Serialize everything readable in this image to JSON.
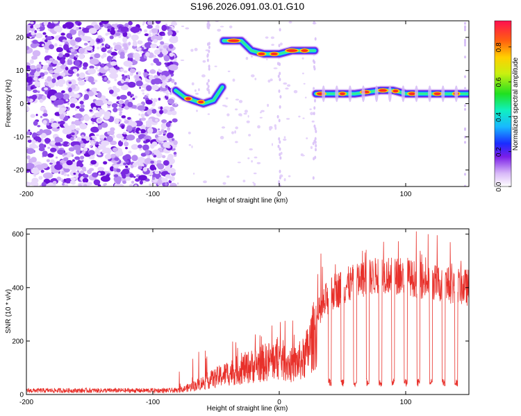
{
  "title": "S196.2026.091.03.01.G10",
  "chart_data": [
    {
      "type": "heatmap",
      "name": "spectrogram",
      "xlabel": "Height of straight line (km)",
      "ylabel": "Frequency (Hz)",
      "xlim": [
        -200,
        150
      ],
      "ylim": [
        -25,
        25
      ],
      "xticks": [
        -200,
        -100,
        0,
        100
      ],
      "yticks": [
        -20,
        -10,
        0,
        10,
        20
      ],
      "colorbar": {
        "label": "Normalized spectral amplitude",
        "range": [
          0,
          0.95
        ],
        "ticks": [
          0.0,
          0.2,
          0.4,
          0.6,
          0.8
        ],
        "tick_labels": [
          "0.0",
          "0.2",
          "0.4",
          "0.6",
          "0.8"
        ]
      },
      "ridge": [
        {
          "x": -82,
          "f": 4
        },
        {
          "x": -75,
          "f": 2
        },
        {
          "x": -68,
          "f": 1
        },
        {
          "x": -60,
          "f": 0
        },
        {
          "x": -52,
          "f": 1
        },
        {
          "x": -45,
          "f": 5
        },
        {
          "x": -44,
          "f": 19
        },
        {
          "x": -30,
          "f": 19
        },
        {
          "x": -22,
          "f": 16
        },
        {
          "x": -12,
          "f": 15
        },
        {
          "x": 0,
          "f": 15
        },
        {
          "x": 10,
          "f": 16
        },
        {
          "x": 20,
          "f": 16
        },
        {
          "x": 28,
          "f": 16
        },
        {
          "x": 29,
          "f": 3
        },
        {
          "x": 60,
          "f": 3
        },
        {
          "x": 80,
          "f": 4
        },
        {
          "x": 90,
          "f": 4
        },
        {
          "x": 100,
          "f": 3
        },
        {
          "x": 150,
          "f": 3
        }
      ]
    },
    {
      "type": "line",
      "name": "snr",
      "xlabel": "Height of straight line (km)",
      "ylabel": "SNR (10 * v/v)",
      "xlim": [
        -200,
        150
      ],
      "ylim": [
        0,
        620
      ],
      "xticks": [
        -200,
        -100,
        0,
        100
      ],
      "yticks": [
        0,
        200,
        400,
        600
      ],
      "series": [
        {
          "name": "SNR",
          "color": "#e8302a",
          "envelope": [
            {
              "x": -200,
              "y": 15
            },
            {
              "x": -80,
              "y": 15
            },
            {
              "x": -65,
              "y": 40
            },
            {
              "x": -40,
              "y": 90
            },
            {
              "x": -20,
              "y": 120
            },
            {
              "x": 0,
              "y": 150
            },
            {
              "x": 10,
              "y": 120
            },
            {
              "x": 20,
              "y": 150
            },
            {
              "x": 30,
              "y": 280
            },
            {
              "x": 40,
              "y": 380
            },
            {
              "x": 60,
              "y": 420
            },
            {
              "x": 80,
              "y": 450
            },
            {
              "x": 100,
              "y": 440
            },
            {
              "x": 120,
              "y": 420
            },
            {
              "x": 150,
              "y": 400
            }
          ],
          "dips_x": [
            40,
            50,
            60,
            70,
            80,
            90,
            100,
            110,
            120,
            130,
            140
          ]
        }
      ]
    }
  ]
}
